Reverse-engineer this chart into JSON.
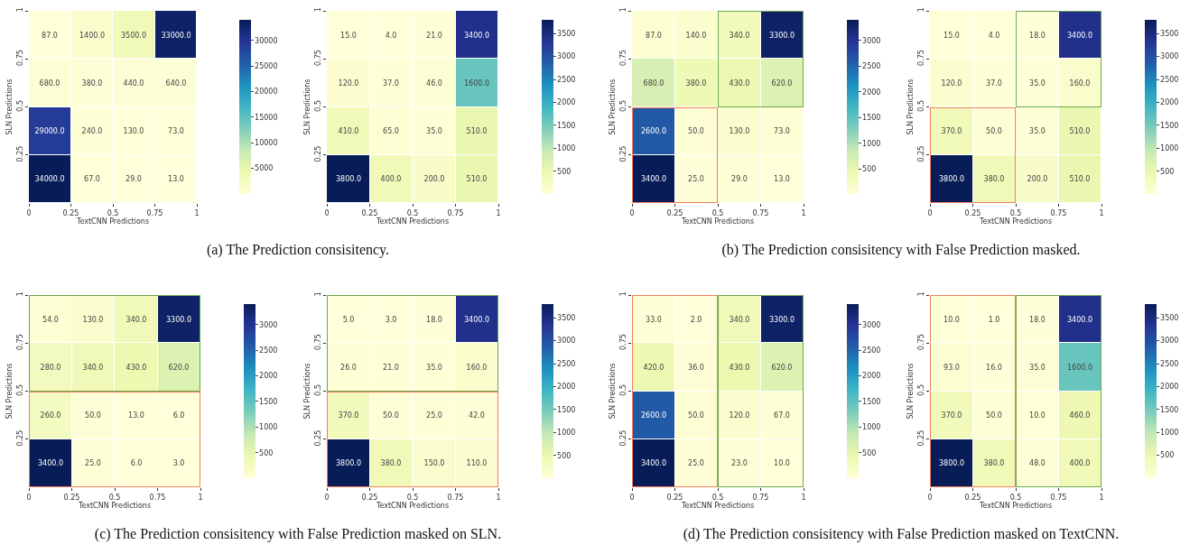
{
  "chart_data": [
    {
      "type": "heatmap",
      "xlabel": "TextCNN Predictions",
      "ylabel": "SLN Predictions",
      "xlim": [
        0,
        1
      ],
      "xticks": [
        0,
        0.25,
        0.5,
        0.75,
        1
      ],
      "ylim": [
        0,
        1
      ],
      "yticks": [
        0.25,
        0.5,
        0.75,
        1
      ],
      "grid": false,
      "cells": [
        [
          87,
          1400,
          3500,
          33000
        ],
        [
          680,
          380,
          440,
          640
        ],
        [
          29000,
          240,
          130,
          73
        ],
        [
          34000,
          67,
          29,
          13
        ]
      ],
      "cell_labels": [
        [
          "87.0",
          "1400.0",
          "3500.0",
          "33000.0"
        ],
        [
          "680.0",
          "380.0",
          "440.0",
          "640.0"
        ],
        [
          "29000.0",
          "240.0",
          "130.0",
          "73.0"
        ],
        [
          "34000.0",
          "67.0",
          "29.0",
          "13.0"
        ]
      ],
      "clim": [
        13,
        34000
      ],
      "cticks": [
        5000,
        10000,
        15000,
        20000,
        25000,
        30000
      ],
      "annotations": [
        "(a) The Prediction consisitency."
      ]
    },
    {
      "type": "heatmap",
      "xlabel": "TextCNN Predictions",
      "ylabel": "SLN Predictions",
      "xlim": [
        0,
        1
      ],
      "xticks": [
        0,
        0.25,
        0.5,
        0.75,
        1
      ],
      "ylim": [
        0,
        1
      ],
      "yticks": [
        0.25,
        0.5,
        0.75,
        1
      ],
      "grid": false,
      "cells": [
        [
          15,
          4,
          21,
          3400
        ],
        [
          120,
          37,
          46,
          1600
        ],
        [
          410,
          65,
          35,
          510
        ],
        [
          3800,
          400,
          200,
          510
        ]
      ],
      "cell_labels": [
        [
          "15.0",
          "4.0",
          "21.0",
          "3400.0"
        ],
        [
          "120.0",
          "37.0",
          "46.0",
          "1600.0"
        ],
        [
          "410.0",
          "65.0",
          "35.0",
          "510.0"
        ],
        [
          "3800.0",
          "400.0",
          "200.0",
          "510.0"
        ]
      ],
      "clim": [
        4,
        3800
      ],
      "cticks": [
        500,
        1000,
        1500,
        2000,
        2500,
        3000,
        3500
      ]
    },
    {
      "type": "heatmap",
      "xlabel": "TextCNN Predictions",
      "ylabel": "SLN Predictions",
      "xlim": [
        0,
        1
      ],
      "xticks": [
        0,
        0.25,
        0.5,
        0.75,
        1
      ],
      "ylim": [
        0,
        1
      ],
      "yticks": [
        0.25,
        0.5,
        0.75,
        1
      ],
      "grid": false,
      "cells": [
        [
          87,
          140,
          340,
          3300
        ],
        [
          680,
          380,
          430,
          620
        ],
        [
          2600,
          50,
          130,
          73
        ],
        [
          3400,
          25,
          29,
          13
        ]
      ],
      "cell_labels": [
        [
          "87.0",
          "140.0",
          "340.0",
          "3300.0"
        ],
        [
          "680.0",
          "380.0",
          "430.0",
          "620.0"
        ],
        [
          "2600.0",
          "50.0",
          "130.0",
          "73.0"
        ],
        [
          "3400.0",
          "25.0",
          "29.0",
          "13.0"
        ]
      ],
      "clim": [
        13,
        3400
      ],
      "cticks": [
        500,
        1000,
        1500,
        2000,
        2500,
        3000
      ],
      "annotations": [
        "(b) The Prediction consisitency with False Prediction masked."
      ]
    },
    {
      "type": "heatmap",
      "xlabel": "TextCNN Predictions",
      "ylabel": "SLN Predictions",
      "xlim": [
        0,
        1
      ],
      "xticks": [
        0,
        0.25,
        0.5,
        0.75,
        1
      ],
      "ylim": [
        0,
        1
      ],
      "yticks": [
        0.25,
        0.5,
        0.75,
        1
      ],
      "grid": false,
      "cells": [
        [
          15,
          4,
          18,
          3400
        ],
        [
          120,
          37,
          35,
          160
        ],
        [
          370,
          50,
          35,
          510
        ],
        [
          3800,
          380,
          200,
          510
        ]
      ],
      "cell_labels": [
        [
          "15.0",
          "4.0",
          "18.0",
          "3400.0"
        ],
        [
          "120.0",
          "37.0",
          "35.0",
          "160.0"
        ],
        [
          "370.0",
          "50.0",
          "35.0",
          "510.0"
        ],
        [
          "3800.0",
          "380.0",
          "200.0",
          "510.0"
        ]
      ],
      "clim": [
        4,
        3800
      ],
      "cticks": [
        500,
        1000,
        1500,
        2000,
        2500,
        3000,
        3500
      ]
    },
    {
      "type": "heatmap",
      "xlabel": "TextCNN Predictions",
      "ylabel": "SLN Predictions",
      "xlim": [
        0,
        1
      ],
      "xticks": [
        0,
        0.25,
        0.5,
        0.75,
        1
      ],
      "ylim": [
        0,
        1
      ],
      "yticks": [
        0.25,
        0.5,
        0.75,
        1
      ],
      "grid": false,
      "cells": [
        [
          54,
          130,
          340,
          3300
        ],
        [
          280,
          340,
          430,
          620
        ],
        [
          260,
          50,
          13,
          6
        ],
        [
          3400,
          25,
          6,
          3
        ]
      ],
      "cell_labels": [
        [
          "54.0",
          "130.0",
          "340.0",
          "3300.0"
        ],
        [
          "280.0",
          "340.0",
          "430.0",
          "620.0"
        ],
        [
          "260.0",
          "50.0",
          "13.0",
          "6.0"
        ],
        [
          "3400.0",
          "25.0",
          "6.0",
          "3.0"
        ]
      ],
      "clim": [
        3,
        3400
      ],
      "cticks": [
        500,
        1000,
        1500,
        2000,
        2500,
        3000
      ],
      "annotations": [
        "(c) The Prediction consisitency with False Prediction masked on SLN."
      ]
    },
    {
      "type": "heatmap",
      "xlabel": "TextCNN Predictions",
      "ylabel": "SLN Predictions",
      "xlim": [
        0,
        1
      ],
      "xticks": [
        0,
        0.25,
        0.5,
        0.75,
        1
      ],
      "ylim": [
        0,
        1
      ],
      "yticks": [
        0.25,
        0.5,
        0.75,
        1
      ],
      "grid": false,
      "cells": [
        [
          5,
          3,
          18,
          3400
        ],
        [
          26,
          21,
          35,
          160
        ],
        [
          370,
          50,
          25,
          42
        ],
        [
          3800,
          380,
          150,
          110
        ]
      ],
      "cell_labels": [
        [
          "5.0",
          "3.0",
          "18.0",
          "3400.0"
        ],
        [
          "26.0",
          "21.0",
          "35.0",
          "160.0"
        ],
        [
          "370.0",
          "50.0",
          "25.0",
          "42.0"
        ],
        [
          "3800.0",
          "380.0",
          "150.0",
          "110.0"
        ]
      ],
      "clim": [
        3,
        3800
      ],
      "cticks": [
        500,
        1000,
        1500,
        2000,
        2500,
        3000,
        3500
      ]
    },
    {
      "type": "heatmap",
      "xlabel": "TextCNN Predictions",
      "ylabel": "SLN Predictions",
      "xlim": [
        0,
        1
      ],
      "xticks": [
        0,
        0.25,
        0.5,
        0.75,
        1
      ],
      "ylim": [
        0,
        1
      ],
      "yticks": [
        0.25,
        0.5,
        0.75,
        1
      ],
      "grid": false,
      "cells": [
        [
          33,
          2,
          340,
          3300
        ],
        [
          420,
          36,
          430,
          620
        ],
        [
          2600,
          50,
          120,
          67
        ],
        [
          3400,
          25,
          23,
          10
        ]
      ],
      "cell_labels": [
        [
          "33.0",
          "2.0",
          "340.0",
          "3300.0"
        ],
        [
          "420.0",
          "36.0",
          "430.0",
          "620.0"
        ],
        [
          "2600.0",
          "50.0",
          "120.0",
          "67.0"
        ],
        [
          "3400.0",
          "25.0",
          "23.0",
          "10.0"
        ]
      ],
      "clim": [
        2,
        3400
      ],
      "cticks": [
        500,
        1000,
        1500,
        2000,
        2500,
        3000
      ],
      "annotations": [
        "(d) The Prediction consisitency with False Prediction masked on TextCNN."
      ]
    },
    {
      "type": "heatmap",
      "xlabel": "TextCNN Predictions",
      "ylabel": "SLN Predictions",
      "xlim": [
        0,
        1
      ],
      "xticks": [
        0,
        0.25,
        0.5,
        0.75,
        1
      ],
      "ylim": [
        0,
        1
      ],
      "yticks": [
        0.25,
        0.5,
        0.75,
        1
      ],
      "grid": false,
      "cells": [
        [
          10,
          1,
          18,
          3400
        ],
        [
          93,
          16,
          35,
          1600
        ],
        [
          370,
          50,
          10,
          460
        ],
        [
          3800,
          380,
          48,
          400
        ]
      ],
      "cell_labels": [
        [
          "10.0",
          "1.0",
          "18.0",
          "3400.0"
        ],
        [
          "93.0",
          "16.0",
          "35.0",
          "1600.0"
        ],
        [
          "370.0",
          "50.0",
          "10.0",
          "460.0"
        ],
        [
          "3800.0",
          "380.0",
          "48.0",
          "400.0"
        ]
      ],
      "clim": [
        1,
        3800
      ],
      "cticks": [
        500,
        1000,
        1500,
        2000,
        2500,
        3000,
        3500
      ]
    }
  ]
}
